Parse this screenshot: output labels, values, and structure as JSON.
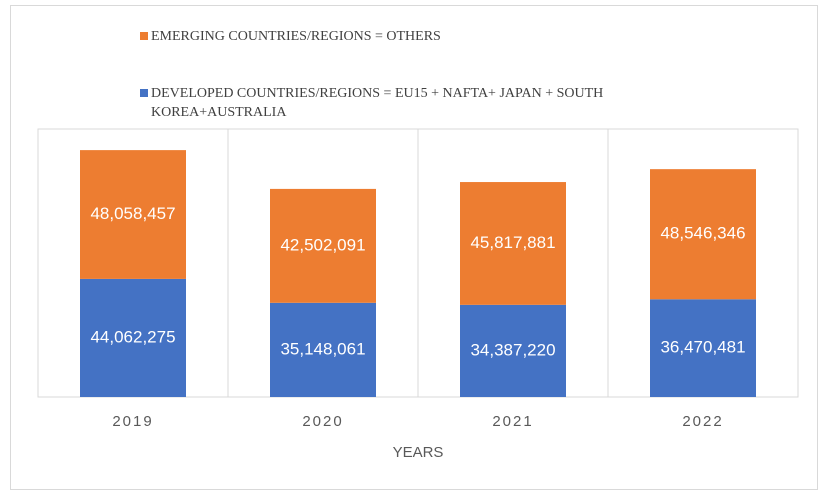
{
  "chart_data": {
    "type": "stacked_bar",
    "categories": [
      "2019",
      "2020",
      "2021",
      "2022"
    ],
    "series": [
      {
        "name": "DEVELOPED COUNTRIES/REGIONS = EU15 + NAFTA+ JAPAN + SOUTH KOREA+AUSTRALIA",
        "color": "#4472c4",
        "values": [
          44062275,
          35148061,
          34387220,
          36470481
        ],
        "value_labels": [
          "44,062,275",
          "35,148,061",
          "34,387,220",
          "36,470,481"
        ]
      },
      {
        "name": "EMERGING COUNTRIES/REGIONS = OTHERS",
        "color": "#ed7d31",
        "values": [
          48058457,
          42502091,
          45817881,
          48546346
        ],
        "value_labels": [
          "48,058,457",
          "42,502,091",
          "45,817,881",
          "48,546,346"
        ]
      }
    ],
    "x_label": "YEARS",
    "ylim": [
      0,
      100000000
    ]
  }
}
